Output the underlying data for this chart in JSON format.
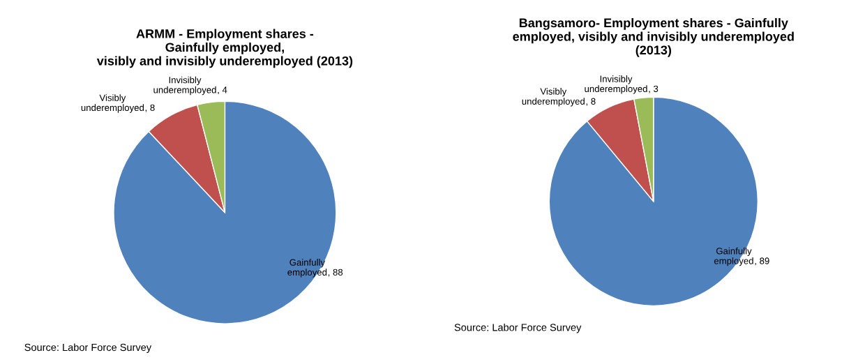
{
  "chart_data": [
    {
      "type": "pie",
      "title": "ARMM - Employment shares -\nGainfully employed,\nvisibly and invisibly underemployed (2013)",
      "categories": [
        "Gainfully employed",
        "Visibly underemployed",
        "Invisibly underemployed"
      ],
      "values": [
        88,
        8,
        4
      ],
      "value_labels": [
        ", 88",
        ", 8",
        ", 4"
      ],
      "colors": [
        "#4f81bd",
        "#c0504d",
        "#9bbb59"
      ],
      "annotations": [
        "Source: Labor Force Survey"
      ]
    },
    {
      "type": "pie",
      "title": "Bangsamoro- Employment shares - Gainfully\nemployed, visibly and invisibly underemployed\n(2013)",
      "categories": [
        "Gainfully employed",
        "Visibly underemployed",
        "Invisibly underemployed"
      ],
      "values": [
        89,
        8,
        3
      ],
      "value_labels": [
        ", 89",
        ", 8",
        ", 3"
      ],
      "colors": [
        "#4f81bd",
        "#c0504d",
        "#9bbb59"
      ],
      "annotations": [
        "Source: Labor Force Survey"
      ]
    }
  ]
}
